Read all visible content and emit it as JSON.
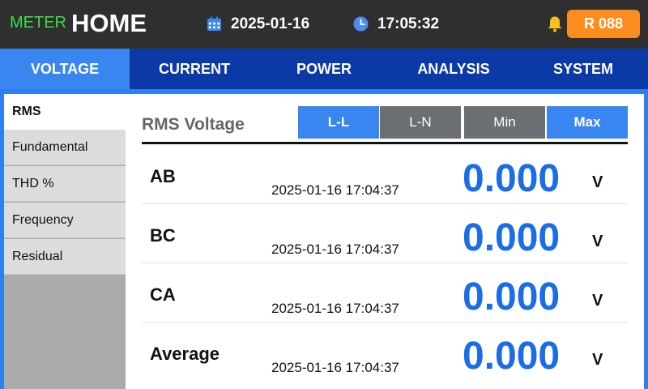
{
  "header": {
    "brand_prefix": "METER",
    "brand_title": "HOME",
    "date": "2025-01-16",
    "time": "17:05:32",
    "badge": "R 088",
    "icons": {
      "date": "calendar-icon",
      "time": "clock-icon",
      "alarm": "bell-icon"
    },
    "colors": {
      "brand_prefix": "#3fd94a",
      "badge": "#fb8c1e",
      "bell": "#f7c21a"
    }
  },
  "tabs": [
    {
      "label": "VOLTAGE",
      "active": true
    },
    {
      "label": "CURRENT",
      "active": false
    },
    {
      "label": "POWER",
      "active": false
    },
    {
      "label": "ANALYSIS",
      "active": false
    },
    {
      "label": "SYSTEM",
      "active": false
    }
  ],
  "side_menu": [
    {
      "label": "RMS",
      "active": true
    },
    {
      "label": "Fundamental",
      "active": false
    },
    {
      "label": "THD %",
      "active": false
    },
    {
      "label": "Frequency",
      "active": false
    },
    {
      "label": "Residual",
      "active": false
    }
  ],
  "panel": {
    "title": "RMS Voltage",
    "modes": [
      {
        "label": "L-L",
        "active": true
      },
      {
        "label": "L-N",
        "active": false
      },
      {
        "label": "Min",
        "active": false
      },
      {
        "label": "Max",
        "active": true
      }
    ],
    "rows": [
      {
        "label": "AB",
        "timestamp": "2025-01-16 17:04:37",
        "value": "0.000",
        "unit": "V"
      },
      {
        "label": "BC",
        "timestamp": "2025-01-16 17:04:37",
        "value": "0.000",
        "unit": "V"
      },
      {
        "label": "CA",
        "timestamp": "2025-01-16 17:04:37",
        "value": "0.000",
        "unit": "V"
      },
      {
        "label": "Average",
        "timestamp": "2025-01-16 17:04:37",
        "value": "0.000",
        "unit": "V"
      }
    ]
  },
  "colors": {
    "header_bg": "#2f2f2f",
    "tabbar_bg": "#0b3aa6",
    "accent": "#3a86f0",
    "value": "#1a6de6"
  }
}
